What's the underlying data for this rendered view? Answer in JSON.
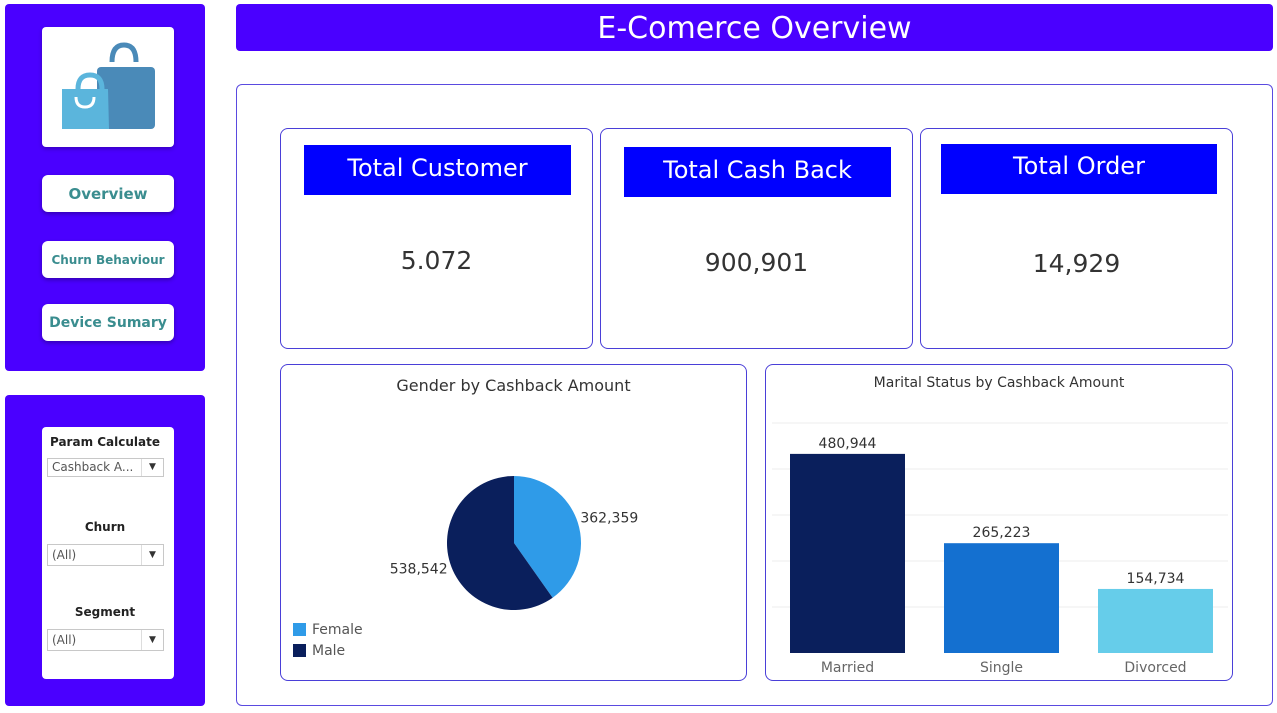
{
  "sidebar": {
    "nav": [
      {
        "label": "Overview"
      },
      {
        "label": "Churn Behaviour"
      },
      {
        "label": "Device Sumary"
      }
    ]
  },
  "filters": {
    "param": {
      "label": "Param Calculate",
      "value": "Cashback A..."
    },
    "churn": {
      "label": "Churn",
      "value": "(All)"
    },
    "segment": {
      "label": "Segment",
      "value": "(All)"
    }
  },
  "header": {
    "title": "E-Comerce Overview"
  },
  "kpis": [
    {
      "title": "Total Customer",
      "value": "5.072"
    },
    {
      "title": "Total Cash Back",
      "value": "900,901"
    },
    {
      "title": "Total Order",
      "value": "14,929"
    }
  ],
  "colors": {
    "brand": "#4a00ff",
    "kpi_header": "#0000ff",
    "female": "#2f9be8",
    "male": "#0a1f5c",
    "married": "#0a1f5c",
    "single": "#1470d0",
    "divorced": "#66cdea"
  },
  "chart_data": [
    {
      "type": "pie",
      "title": "Gender by Cashback Amount",
      "labels": [
        "Female",
        "Male"
      ],
      "values": [
        362359,
        538542
      ],
      "value_labels": [
        "362,359",
        "538,542"
      ],
      "legend": "bottom-left"
    },
    {
      "type": "bar",
      "title": "Marital Status by Cashback Amount",
      "categories": [
        "Married",
        "Single",
        "Divorced"
      ],
      "values": [
        480944,
        265223,
        154734
      ],
      "value_labels": [
        "480,944",
        "265,223",
        "154,734"
      ],
      "ylim": [
        0,
        500000
      ],
      "grid": true
    }
  ]
}
